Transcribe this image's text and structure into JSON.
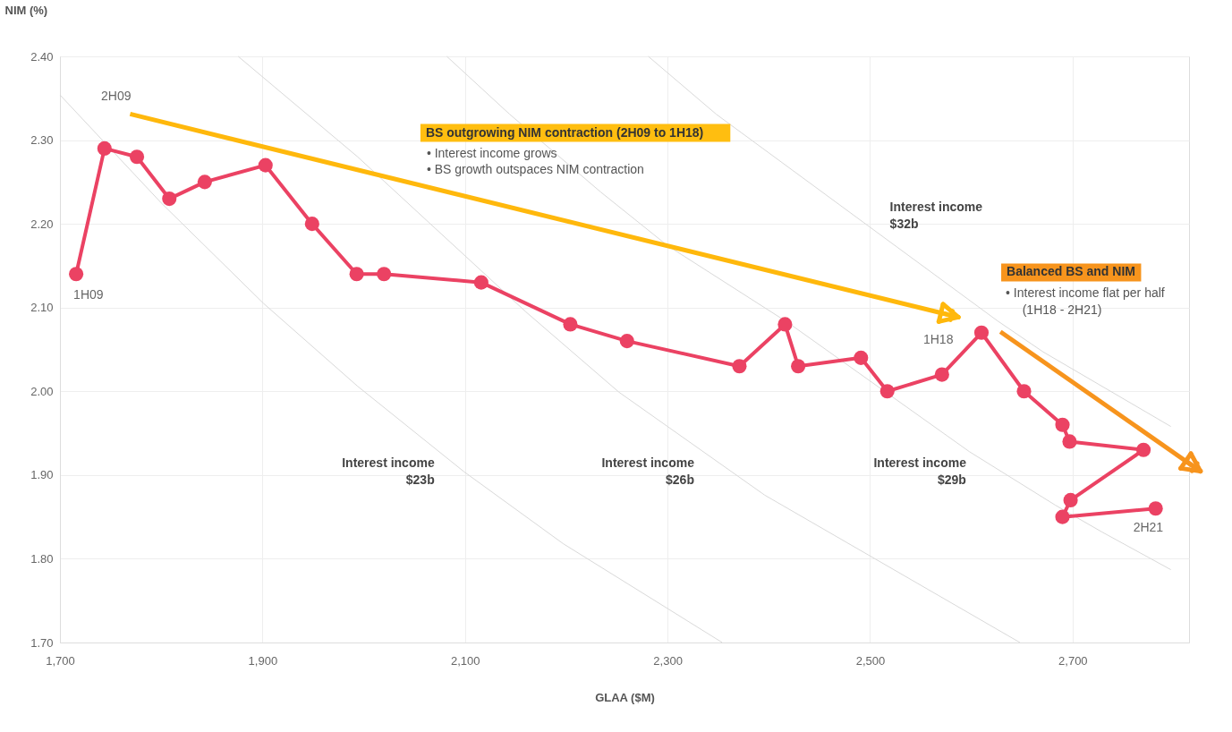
{
  "chart_data": {
    "type": "line",
    "xlabel": "GLAA ($M)",
    "ylabel": "NIM (%)",
    "xlim": [
      1700,
      2815
    ],
    "ylim": [
      1.7,
      2.4
    ],
    "xticks": [
      {
        "value": 1700,
        "label": "1,700"
      },
      {
        "value": 1900,
        "label": "1,900"
      },
      {
        "value": 2100,
        "label": "2,100"
      },
      {
        "value": 2300,
        "label": "2,300"
      },
      {
        "value": 2500,
        "label": "2,500"
      },
      {
        "value": 2700,
        "label": "2,700"
      }
    ],
    "yticks": [
      {
        "value": 1.7,
        "label": "1.70"
      },
      {
        "value": 1.8,
        "label": "1.80"
      },
      {
        "value": 1.9,
        "label": "1.90"
      },
      {
        "value": 2.0,
        "label": "2.00"
      },
      {
        "value": 2.1,
        "label": "2.10"
      },
      {
        "value": 2.2,
        "label": "2.20"
      },
      {
        "value": 2.3,
        "label": "2.30"
      },
      {
        "value": 2.4,
        "label": "2.40"
      }
    ],
    "grid": true,
    "series": [
      {
        "color": "#d9d9d9",
        "marker": "none",
        "x": [
          1700,
          1800,
          1901,
          1994,
          2099,
          2197,
          2354
        ],
        "values": [
          2.354,
          2.225,
          2.105,
          2.006,
          1.904,
          1.818,
          1.7
        ]
      },
      {
        "color": "#d9d9d9",
        "marker": "none",
        "x": [
          1876,
          1994,
          2160,
          2252,
          2396,
          2648
        ],
        "values": [
          2.4,
          2.28,
          2.095,
          1.999,
          1.876,
          1.7
        ]
      },
      {
        "color": "#d9d9d9",
        "marker": "none",
        "x": [
          2082,
          2144,
          2234,
          2300,
          2419,
          2598,
          2683,
          2729,
          2797
        ],
        "values": [
          2.4,
          2.331,
          2.238,
          2.174,
          2.082,
          1.928,
          1.864,
          1.832,
          1.787
        ]
      },
      {
        "color": "#d9d9d9",
        "marker": "none",
        "x": [
          2281,
          2348,
          2626,
          2671,
          2797
        ],
        "values": [
          2.4,
          2.331,
          2.084,
          2.047,
          1.958
        ]
      },
      {
        "color": "#eb4263",
        "marker": "circle",
        "x": [
          1716,
          1744,
          1776,
          1808,
          1843,
          1903,
          1949,
          1993,
          2020,
          2116,
          2204,
          2260,
          2371,
          2416,
          2429,
          2491,
          2517,
          2571,
          2610,
          2652,
          2690,
          2697,
          2770,
          2698,
          2690,
          2782
        ],
        "values": [
          2.14,
          2.29,
          2.28,
          2.23,
          2.25,
          2.27,
          2.2,
          2.14,
          2.14,
          2.13,
          2.08,
          2.06,
          2.03,
          2.08,
          2.03,
          2.04,
          2.0,
          2.02,
          2.07,
          2.0,
          1.96,
          1.94,
          1.93,
          1.87,
          1.85,
          1.86
        ]
      }
    ],
    "annotations": [
      "2H09",
      {
        "text": "1H09",
        "x": 1716,
        "y": 2.14
      },
      {
        "text": "1H18",
        "x": 2610,
        "y": 2.07
      },
      {
        "text": "2H21",
        "x": 2782,
        "y": 1.86
      },
      "Interest income\n$23b",
      "Interest income\n$26b",
      "Interest income\n$29b",
      "Interest income\n$32b",
      "BS outgrowing NIM contraction (2H09 to 1H18)",
      "• Interest income grows",
      "• BS growth outspaces NIM contraction",
      "Balanced BS and NIM",
      "• Interest income flat per half",
      "(1H18 - 2H21)"
    ]
  }
}
